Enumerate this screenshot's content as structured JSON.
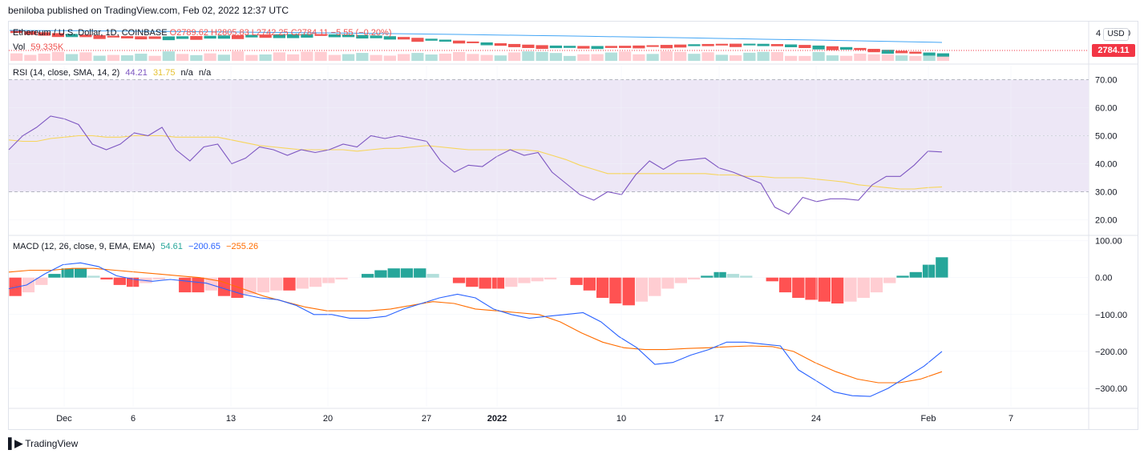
{
  "header": {
    "published": "beniloba published on TradingView.com, Feb 02, 2022 12:37 UTC"
  },
  "legend": {
    "symbol": "Ethereum / U.S. Dollar, 1D, COINBASE",
    "ohlc": "O2789.62 H2805.83 L2742.25 C2784.11 −5.55 (−0.20%)",
    "vol_label": "Vol",
    "vol_value": "59.335K",
    "rsi_label": "RSI (14, close, SMA, 14, 2)",
    "rsi_value": "44.21",
    "rsi_sma_value": "31.75",
    "rsi_na1": "n/a",
    "rsi_na2": "n/a",
    "macd_label": "MACD (12, 26, close, 9, EMA, EMA)",
    "macd_hist_value": "54.61",
    "macd_line_value": "−200.65",
    "macd_signal_value": "−255.26"
  },
  "price_axis": {
    "top_label": "4",
    "top_label_2": "0",
    "currency": "USD",
    "last_price": "2784.11"
  },
  "colors": {
    "up": "#26a69a",
    "down": "#ef5350",
    "rsi": "#7e57c2",
    "rsi_sma": "#f7d55c",
    "macd": "#2962ff",
    "signal": "#ff6d00",
    "hist_up_strong": "#26a69a",
    "hist_up_weak": "#b2dfdb",
    "hist_down_strong": "#ff5252",
    "hist_down_weak": "#ffcdd2",
    "rsi_band": "#ede7f6",
    "ema": "#42a5f5"
  },
  "x_axis": {
    "ticks": [
      "Dec",
      "6",
      "13",
      "20",
      "27",
      "2022",
      "10",
      "17",
      "24",
      "Feb",
      "7"
    ]
  },
  "footer": {
    "brand": "TradingView"
  },
  "chart_data": [
    {
      "type": "line",
      "title": "RSI (14, close, SMA, 14, 2)",
      "ylim": [
        15,
        75
      ],
      "yticks": [
        "70.00",
        "60.00",
        "50.00",
        "40.00",
        "30.00",
        "20.00"
      ],
      "bands": [
        30,
        70
      ],
      "series": [
        {
          "name": "RSI",
          "values": [
            45,
            50,
            53,
            57,
            56,
            54,
            47,
            45,
            47,
            51,
            50,
            53,
            45,
            41,
            46,
            47,
            40,
            42,
            46,
            45,
            43,
            45,
            44,
            45,
            47,
            46,
            50,
            49,
            50,
            49,
            48,
            41,
            37,
            39.5,
            39,
            42.5,
            45,
            43,
            44,
            37,
            33,
            29,
            27,
            30,
            29,
            36,
            41,
            38,
            41,
            41.5,
            42,
            38.5,
            37,
            35,
            33,
            24.5,
            22,
            28,
            26.5,
            27.5,
            27.5,
            27,
            32.5,
            35.5,
            35.5,
            39.5,
            44.5,
            44.2
          ]
        },
        {
          "name": "SMA",
          "values": [
            48.5,
            48,
            48,
            49,
            49.5,
            50,
            50,
            49.5,
            49.5,
            50,
            50,
            50,
            49.5,
            49.5,
            49.5,
            49.5,
            48.5,
            47.5,
            46.5,
            46,
            45.5,
            45,
            45,
            45,
            45,
            44.5,
            45,
            45.5,
            45.5,
            46,
            46.5,
            46,
            45.5,
            45,
            45,
            45,
            45,
            45,
            44.5,
            43,
            41.5,
            39.5,
            38,
            36.5,
            36.5,
            36.5,
            36.5,
            36.5,
            36.5,
            36.5,
            36.5,
            36,
            36,
            35.5,
            35.5,
            35,
            35,
            35,
            34.5,
            34,
            33.5,
            32.5,
            32,
            31.5,
            31,
            31,
            31.5,
            31.75
          ]
        }
      ]
    },
    {
      "type": "line",
      "title": "MACD (12, 26, close, 9, EMA, EMA)",
      "ylim": [
        -350,
        110
      ],
      "yticks": [
        "100.00",
        "0.00",
        "−100.00",
        "−200.00",
        "−300.00"
      ],
      "series": [
        {
          "name": "Histogram",
          "values": [
            -50,
            -40,
            -20,
            10,
            25,
            25,
            5,
            -5,
            -20,
            -25,
            -15,
            -5,
            0,
            -40,
            -40,
            -35,
            -50,
            -55,
            -45,
            -40,
            -35,
            -35,
            -30,
            -25,
            -15,
            -5,
            0,
            10,
            20,
            25,
            25,
            25,
            10,
            0,
            -15,
            -25,
            -30,
            -30,
            -25,
            -15,
            -10,
            -5,
            0,
            -20,
            -35,
            -55,
            -70,
            -75,
            -65,
            -50,
            -30,
            -15,
            -5,
            5,
            15,
            10,
            5,
            0,
            -10,
            -40,
            -55,
            -60,
            -65,
            -70,
            -65,
            -55,
            -40,
            -15,
            5,
            15,
            35,
            55
          ]
        },
        {
          "name": "MACD",
          "values": [
            -30,
            -20,
            10,
            35,
            40,
            30,
            5,
            -5,
            -10,
            -5,
            -10,
            -15,
            -30,
            -45,
            -55,
            -60,
            -75,
            -100,
            -100,
            -110,
            -110,
            -105,
            -85,
            -70,
            -55,
            -45,
            -55,
            -85,
            -100,
            -110,
            -105,
            -100,
            -95,
            -120,
            -160,
            -190,
            -235,
            -230,
            -210,
            -195,
            -175,
            -175,
            -180,
            -185,
            -250,
            -280,
            -310,
            -320,
            -322,
            -300,
            -270,
            -240,
            -200
          ]
        },
        {
          "name": "Signal",
          "values": [
            15,
            20,
            20,
            25,
            25,
            20,
            15,
            10,
            5,
            0,
            -10,
            -30,
            -50,
            -65,
            -80,
            -90,
            -90,
            -90,
            -85,
            -75,
            -65,
            -70,
            -85,
            -90,
            -95,
            -100,
            -120,
            -150,
            -175,
            -190,
            -195,
            -195,
            -192,
            -190,
            -187,
            -185,
            -187,
            -200,
            -230,
            -255,
            -275,
            -285,
            -285,
            -275,
            -255
          ]
        }
      ]
    }
  ]
}
